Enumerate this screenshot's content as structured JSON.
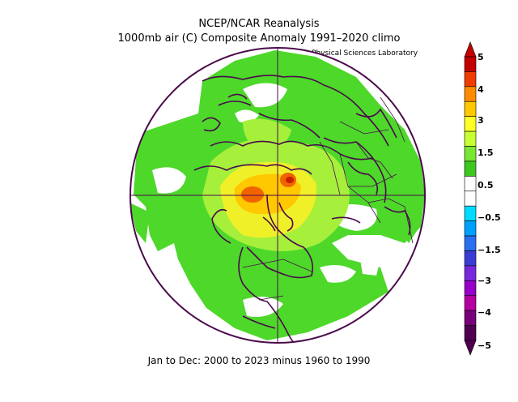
{
  "title_line1": "NCEP/NCAR Reanalysis",
  "title_line2": "1000mb air (C) Composite Anomaly 1991–2020 climo",
  "lab_label": "NOAA Physical Sciences Laboratory",
  "footer": "Jan to Dec: 2000 to 2023 minus 1960 to 1990",
  "colorbar": {
    "labels": [
      "5",
      "4",
      "3",
      "1.5",
      "0.5",
      "−0.5",
      "−1.5",
      "−3",
      "−4",
      "−5"
    ],
    "colors": [
      "#c40000",
      "#f03c00",
      "#ff8c00",
      "#ffc800",
      "#ffff28",
      "#c8ff32",
      "#78e632",
      "#3cc81e",
      "#ffffff",
      "#ffffff",
      "#00dcff",
      "#00a0ff",
      "#2a6ff0",
      "#3c3cd2",
      "#7828dc",
      "#9600c8",
      "#b400a0",
      "#780078",
      "#500050"
    ]
  }
}
